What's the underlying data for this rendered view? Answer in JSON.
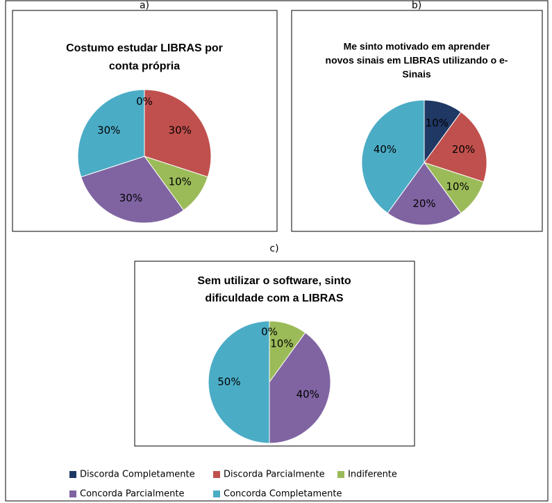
{
  "legend": {
    "categories": [
      "Discorda Completamente",
      "Discorda Parcialmente",
      "Indiferente",
      "Concorda Parcialmente",
      "Concorda Completamente"
    ],
    "colors": [
      "#1f3864",
      "#c0504d",
      "#9bbb59",
      "#8064a2",
      "#4bacc6"
    ]
  },
  "chart_data": [
    {
      "type": "pie",
      "label": "a)",
      "title": [
        "Costumo estudar LIBRAS por",
        "conta própria"
      ],
      "values": [
        0,
        30,
        10,
        30,
        30
      ],
      "value_labels": [
        "0%",
        "30%",
        "10%",
        "30%",
        "30%"
      ]
    },
    {
      "type": "pie",
      "label": "b)",
      "title": [
        "Me sinto motivado em aprender",
        "novos sinais em LIBRAS utilizando o e-",
        "Sinais"
      ],
      "values": [
        10,
        20,
        10,
        20,
        40
      ],
      "value_labels": [
        "10%",
        "20%",
        "10%",
        "20%",
        "40%"
      ]
    },
    {
      "type": "pie",
      "label": "c)",
      "title": [
        "Sem utilizar o software, sinto",
        "dificuldade com a LIBRAS"
      ],
      "values": [
        0,
        null,
        10,
        40,
        50
      ],
      "value_labels": [
        "0%",
        null,
        "10%",
        "40%",
        "50%"
      ]
    }
  ]
}
